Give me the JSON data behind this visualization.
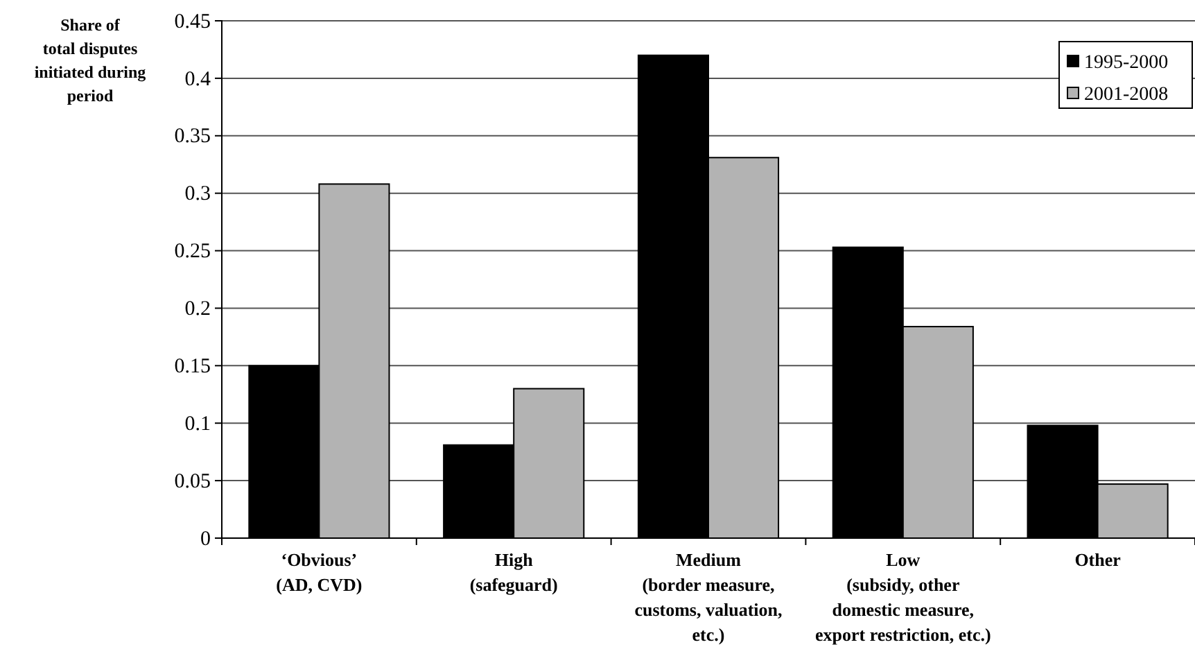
{
  "chart_data": {
    "type": "bar",
    "ylabel": "Share of\ntotal disputes\ninitiated during\nperiod",
    "categories": [
      "‘Obvious’\n(AD, CVD)",
      "High\n(safeguard)",
      "Medium\n(border measure,\ncustoms, valuation,\netc.)",
      "Low\n(subsidy, other\ndomestic measure,\nexport restriction, etc.)",
      "Other"
    ],
    "series": [
      {
        "name": "1995-2000",
        "color": "#000000",
        "values": [
          0.15,
          0.081,
          0.42,
          0.253,
          0.098
        ]
      },
      {
        "name": "2001-2008",
        "color": "#b3b3b3",
        "values": [
          0.308,
          0.13,
          0.331,
          0.184,
          0.047
        ]
      }
    ],
    "ylim": [
      0,
      0.45
    ],
    "yticks": [
      0,
      0.05,
      0.1,
      0.15,
      0.2,
      0.25,
      0.3,
      0.35,
      0.4,
      0.45
    ],
    "grid": "y",
    "legend": "top right"
  }
}
